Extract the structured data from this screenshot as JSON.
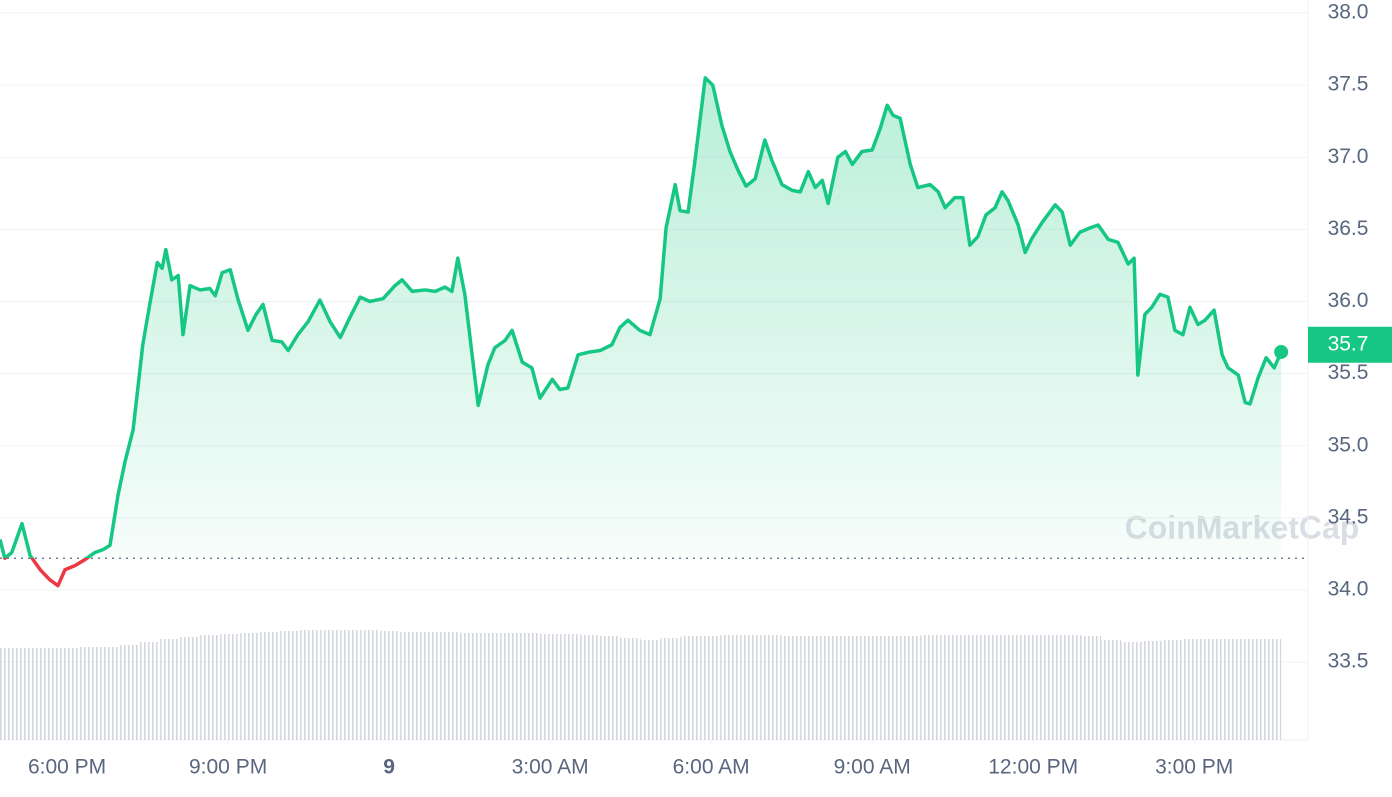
{
  "chart_data": {
    "type": "line",
    "watermark": "CoinMarketCap",
    "color": "#16c784",
    "down_color": "#ea3943",
    "baseline": 34.22,
    "last_price": 35.7,
    "grid": true,
    "xlim": [
      16.75,
      41.12
    ],
    "ylim": [
      32.96,
      38.09
    ],
    "xticks": [
      {
        "value": 18,
        "label": "6:00 PM"
      },
      {
        "value": 21,
        "label": "9:00 PM"
      },
      {
        "value": 24,
        "label": "9"
      },
      {
        "value": 27,
        "label": "3:00 AM"
      },
      {
        "value": 30,
        "label": "6:00 AM"
      },
      {
        "value": 33,
        "label": "9:00 AM"
      },
      {
        "value": 36,
        "label": "12:00 PM"
      },
      {
        "value": 39,
        "label": "3:00 PM"
      }
    ],
    "yticks": [
      {
        "value": 33.5,
        "label": "33.5"
      },
      {
        "value": 34,
        "label": "34.0"
      },
      34.5,
      {
        "value": 35,
        "label": "35.0"
      },
      35.5,
      {
        "value": 36,
        "label": "36.0"
      },
      36.5,
      {
        "value": 37,
        "label": "37.0"
      },
      37.5,
      {
        "value": 38,
        "label": "38.0"
      }
    ],
    "x": [
      16.75,
      16.84,
      16.97,
      17.16,
      17.31,
      17.5,
      17.68,
      17.83,
      17.96,
      18.15,
      18.33,
      18.52,
      18.67,
      18.8,
      18.95,
      19.08,
      19.23,
      19.41,
      19.54,
      19.68,
      19.77,
      19.84,
      19.95,
      20.07,
      20.16,
      20.29,
      20.48,
      20.66,
      20.76,
      20.89,
      21.04,
      21.18,
      21.37,
      21.52,
      21.65,
      21.82,
      22.0,
      22.12,
      22.3,
      22.49,
      22.71,
      22.9,
      23.09,
      23.27,
      23.46,
      23.64,
      23.89,
      24.11,
      24.24,
      24.43,
      24.67,
      24.86,
      25.04,
      25.17,
      25.28,
      25.41,
      25.66,
      25.84,
      25.97,
      26.16,
      26.29,
      26.48,
      26.66,
      26.81,
      27.04,
      27.18,
      27.33,
      27.52,
      27.74,
      27.93,
      28.15,
      28.3,
      28.45,
      28.67,
      28.86,
      29.05,
      29.16,
      29.33,
      29.42,
      29.57,
      29.7,
      29.89,
      30.03,
      30.2,
      30.35,
      30.5,
      30.65,
      30.82,
      31.0,
      31.13,
      31.32,
      31.51,
      31.66,
      31.81,
      31.94,
      32.07,
      32.18,
      32.36,
      32.5,
      32.63,
      32.81,
      33.0,
      33.15,
      33.28,
      33.39,
      33.52,
      33.71,
      33.85,
      34.08,
      34.23,
      34.36,
      34.54,
      34.69,
      34.82,
      34.97,
      35.12,
      35.29,
      35.42,
      35.53,
      35.72,
      35.85,
      35.98,
      36.17,
      36.41,
      36.54,
      36.69,
      36.87,
      37.06,
      37.21,
      37.4,
      37.58,
      37.77,
      37.88,
      37.95,
      38.08,
      38.21,
      38.36,
      38.51,
      38.64,
      38.79,
      38.92,
      39.07,
      39.2,
      39.37,
      39.52,
      39.63,
      39.82,
      39.95,
      40.04,
      40.19,
      40.34,
      40.49,
      40.62
    ],
    "values": [
      34.35,
      34.22,
      34.26,
      34.46,
      34.24,
      34.14,
      34.07,
      34.03,
      34.14,
      34.17,
      34.21,
      34.26,
      34.28,
      34.31,
      34.66,
      34.89,
      35.11,
      35.7,
      35.98,
      36.27,
      36.23,
      36.36,
      36.15,
      36.18,
      35.77,
      36.11,
      36.08,
      36.09,
      36.04,
      36.2,
      36.22,
      36.02,
      35.8,
      35.91,
      35.98,
      35.73,
      35.72,
      35.66,
      35.77,
      35.86,
      36.01,
      35.86,
      35.75,
      35.89,
      36.03,
      36.0,
      36.02,
      36.11,
      36.15,
      36.07,
      36.08,
      36.07,
      36.1,
      36.07,
      36.3,
      36.05,
      35.28,
      35.56,
      35.68,
      35.73,
      35.8,
      35.58,
      35.54,
      35.33,
      35.46,
      35.39,
      35.4,
      35.63,
      35.65,
      35.66,
      35.7,
      35.82,
      35.87,
      35.8,
      35.77,
      36.02,
      36.51,
      36.81,
      36.63,
      36.62,
      36.98,
      37.55,
      37.5,
      37.22,
      37.04,
      36.91,
      36.8,
      36.85,
      37.12,
      36.98,
      36.81,
      36.77,
      36.76,
      36.9,
      36.79,
      36.84,
      36.68,
      37.0,
      37.04,
      36.95,
      37.04,
      37.05,
      37.2,
      37.36,
      37.29,
      37.27,
      36.95,
      36.79,
      36.81,
      36.76,
      36.65,
      36.72,
      36.72,
      36.39,
      36.45,
      36.6,
      36.65,
      36.76,
      36.7,
      36.53,
      36.34,
      36.44,
      36.55,
      36.67,
      36.62,
      36.39,
      36.48,
      36.51,
      36.53,
      36.43,
      36.41,
      36.26,
      36.3,
      35.49,
      35.91,
      35.96,
      36.05,
      36.03,
      35.8,
      35.77,
      35.96,
      35.84,
      35.87,
      35.94,
      35.63,
      35.54,
      35.49,
      35.3,
      35.29,
      35.47,
      35.61,
      35.54,
      35.65
    ],
    "volume": {
      "color": "#d9dde3",
      "vlim": [
        0,
        110
      ],
      "values": [
        92,
        92,
        92,
        92,
        93,
        93,
        95,
        98,
        101,
        103,
        105,
        106,
        107,
        108,
        109,
        110,
        110,
        110,
        110,
        109,
        108,
        108,
        108,
        107,
        107,
        107,
        107,
        106,
        106,
        105,
        104,
        102,
        100,
        102,
        104,
        104,
        105,
        105,
        105,
        104,
        104,
        104,
        104,
        104,
        104,
        104,
        105,
        105,
        105,
        105,
        105,
        105,
        105,
        105,
        104,
        100,
        98,
        99,
        100,
        101,
        101,
        101,
        101,
        101
      ]
    }
  }
}
